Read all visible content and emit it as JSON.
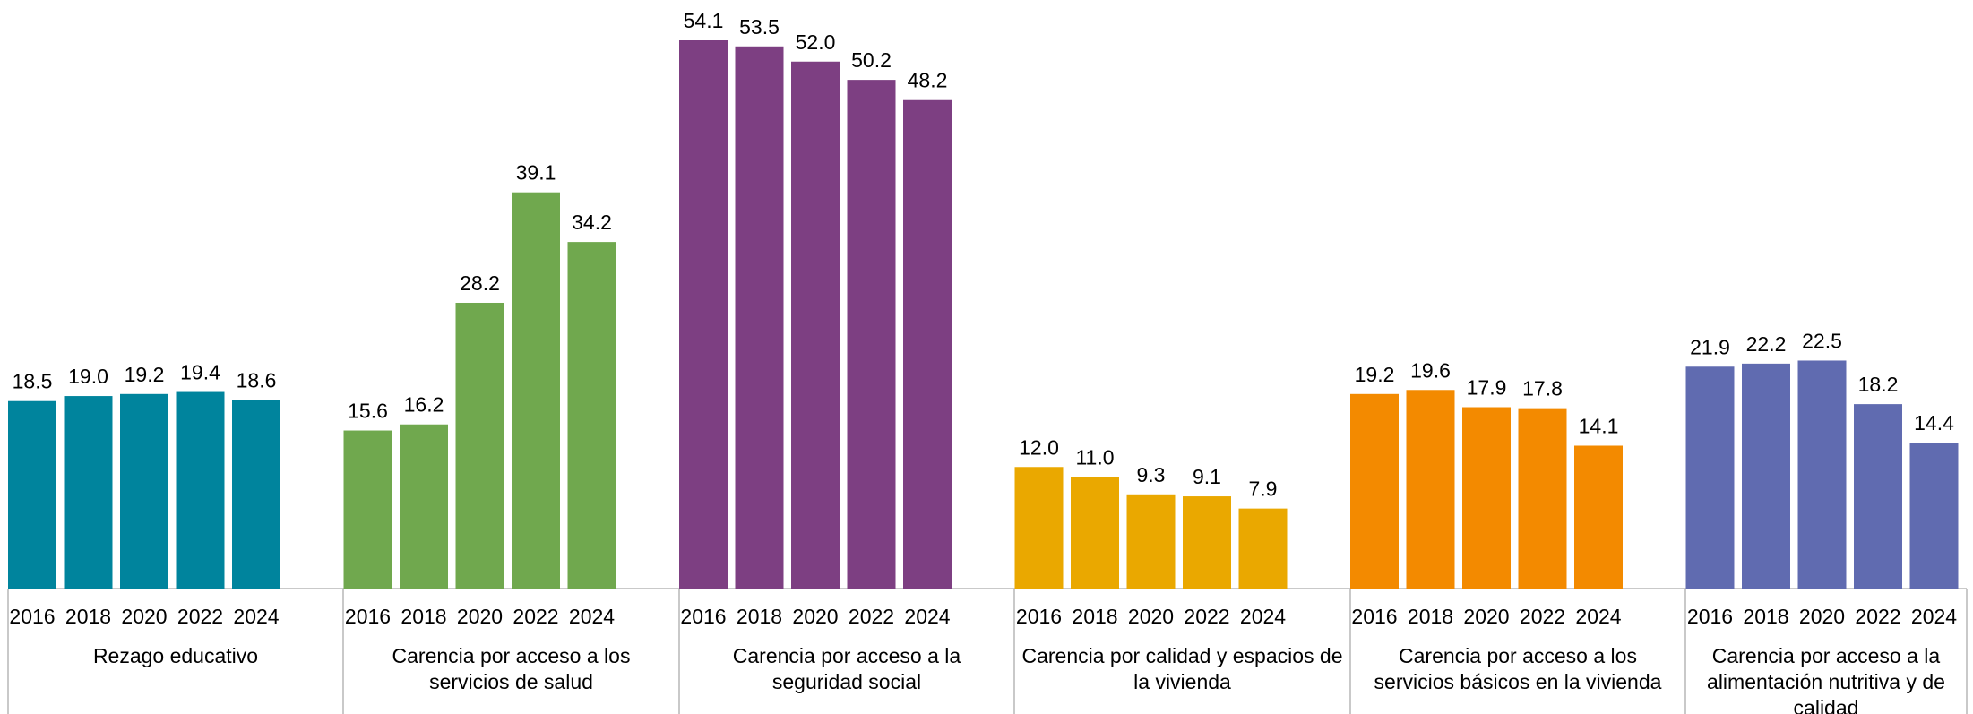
{
  "chart_data": {
    "type": "bar",
    "title": "",
    "xlabel": "",
    "ylabel": "",
    "ylim": [
      0,
      54.1
    ],
    "grid": false,
    "legend": "none",
    "years": [
      "2016",
      "2018",
      "2020",
      "2022",
      "2024"
    ],
    "groups": [
      {
        "name": "Rezago educativo",
        "label_lines": [
          "Rezago educativo"
        ],
        "color": "#00849d",
        "values": [
          18.5,
          19.0,
          19.2,
          19.4,
          18.6
        ]
      },
      {
        "name": "Carencia por acceso a los servicios de salud",
        "label_lines": [
          "Carencia por acceso a los",
          "servicios de salud"
        ],
        "color": "#70a84e",
        "values": [
          15.6,
          16.2,
          28.2,
          39.1,
          34.2
        ]
      },
      {
        "name": "Carencia por acceso a la seguridad social",
        "label_lines": [
          "Carencia por acceso a la",
          "seguridad social"
        ],
        "color": "#7d3f82",
        "values": [
          54.1,
          53.5,
          52.0,
          50.2,
          48.2
        ]
      },
      {
        "name": "Carencia por calidad y espacios de la vivienda",
        "label_lines": [
          "Carencia por calidad y espacios de",
          "la vivienda"
        ],
        "color": "#eaa800",
        "values": [
          12.0,
          11.0,
          9.3,
          9.1,
          7.9
        ]
      },
      {
        "name": "Carencia por acceso a los servicios básicos en la vivienda",
        "label_lines": [
          "Carencia por acceso a los",
          "servicios básicos en la vivienda"
        ],
        "color": "#f38a00",
        "values": [
          19.2,
          19.6,
          17.9,
          17.8,
          14.1
        ]
      },
      {
        "name": "Carencia por acceso a la alimentación nutritiva y de calidad",
        "label_lines": [
          "Carencia por acceso a la",
          "alimentación nutritiva y de",
          "calidad"
        ],
        "color": "#606bb0",
        "values": [
          21.9,
          22.2,
          22.5,
          18.2,
          14.4
        ]
      }
    ]
  }
}
